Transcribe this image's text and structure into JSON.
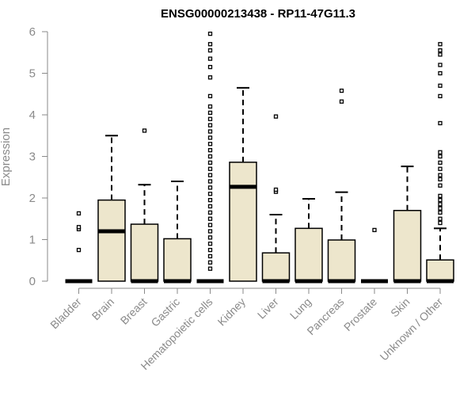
{
  "chart_data": {
    "type": "boxplot",
    "title": "ENSG00000213438 - RP11-47G11.3",
    "xlabel": "",
    "ylabel": "Expression",
    "ylim": [
      0,
      6
    ],
    "yticks": [
      0,
      1,
      2,
      3,
      4,
      5,
      6
    ],
    "grid": false,
    "box_color": "#ede6cc",
    "categories": [
      "Bladder",
      "Brain",
      "Breast",
      "Gastric",
      "Hematopoietic cells",
      "Kidney",
      "Liver",
      "Lung",
      "Pancreas",
      "Prostate",
      "Skin",
      "Unknown / Other"
    ],
    "boxes": [
      {
        "q1": 0,
        "median": 0,
        "q3": 0,
        "whisker_low": 0,
        "whisker_high": 0,
        "outliers": [
          0.75,
          1.25,
          1.3,
          1.63
        ]
      },
      {
        "q1": 0,
        "median": 1.2,
        "q3": 1.95,
        "whisker_low": 0,
        "whisker_high": 3.5,
        "outliers": []
      },
      {
        "q1": 0,
        "median": 0,
        "q3": 1.37,
        "whisker_low": 0,
        "whisker_high": 2.32,
        "outliers": [
          3.62
        ]
      },
      {
        "q1": 0,
        "median": 0,
        "q3": 1.02,
        "whisker_low": 0,
        "whisker_high": 2.4,
        "outliers": []
      },
      {
        "q1": 0,
        "median": 0,
        "q3": 0,
        "whisker_low": 0,
        "whisker_high": 0,
        "outliers": [
          0.3,
          0.45,
          0.6,
          0.75,
          0.9,
          1.05,
          1.2,
          1.35,
          1.5,
          1.65,
          1.8,
          1.95,
          2.1,
          2.25,
          2.4,
          2.55,
          2.7,
          2.85,
          3.0,
          3.15,
          3.3,
          3.45,
          3.6,
          3.75,
          3.9,
          4.05,
          4.2,
          4.45,
          4.9,
          5.15,
          5.35,
          5.55,
          5.7,
          5.95
        ]
      },
      {
        "q1": 0,
        "median": 2.27,
        "q3": 2.86,
        "whisker_low": 0,
        "whisker_high": 4.65,
        "outliers": []
      },
      {
        "q1": 0,
        "median": 0,
        "q3": 0.68,
        "whisker_low": 0,
        "whisker_high": 1.6,
        "outliers": [
          2.15,
          2.2,
          3.96
        ]
      },
      {
        "q1": 0,
        "median": 0,
        "q3": 1.27,
        "whisker_low": 0,
        "whisker_high": 1.98,
        "outliers": []
      },
      {
        "q1": 0,
        "median": 0,
        "q3": 0.99,
        "whisker_low": 0,
        "whisker_high": 2.14,
        "outliers": [
          4.32,
          4.58
        ]
      },
      {
        "q1": 0,
        "median": 0,
        "q3": 0,
        "whisker_low": 0,
        "whisker_high": 0,
        "outliers": [
          1.23
        ]
      },
      {
        "q1": 0,
        "median": 0,
        "q3": 1.7,
        "whisker_low": 0,
        "whisker_high": 2.76,
        "outliers": []
      },
      {
        "q1": 0,
        "median": 0,
        "q3": 0.51,
        "whisker_low": 0,
        "whisker_high": 1.27,
        "outliers": [
          1.4,
          1.5,
          1.65,
          1.75,
          1.85,
          1.95,
          2.05,
          2.3,
          2.45,
          2.55,
          2.7,
          2.85,
          3.0,
          3.1,
          3.8,
          4.45,
          4.7,
          5.0,
          5.2,
          5.45,
          5.55,
          5.7
        ]
      }
    ]
  }
}
